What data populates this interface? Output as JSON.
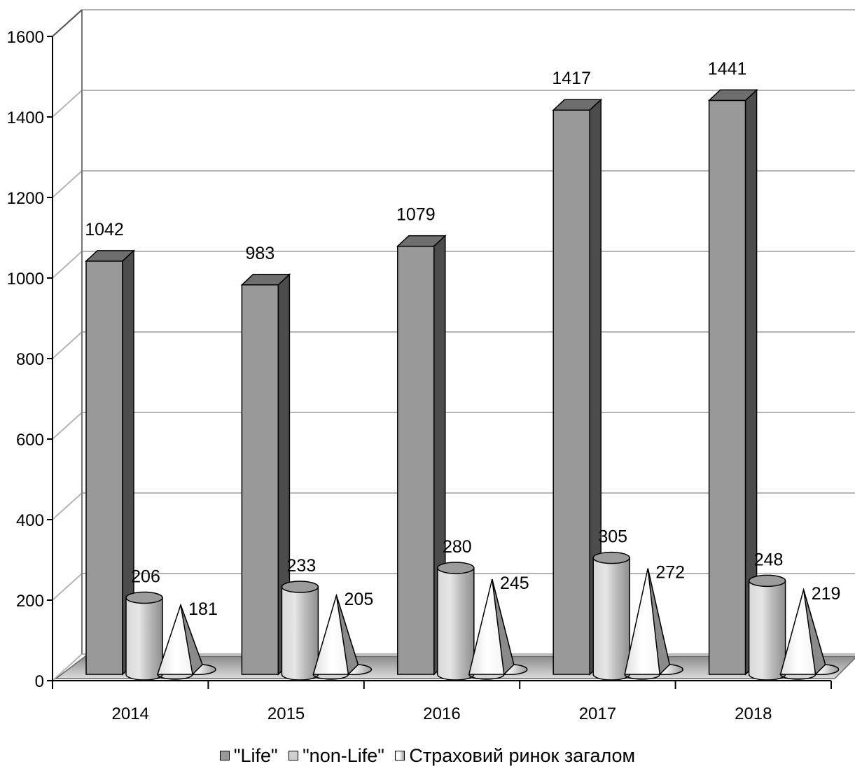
{
  "chart_data": {
    "type": "bar",
    "title": "",
    "xlabel": "",
    "ylabel": "",
    "categories": [
      "2014",
      "2015",
      "2016",
      "2017",
      "2018"
    ],
    "ylim": [
      0,
      1600
    ],
    "yticks": [
      "0",
      "200",
      "400",
      "600",
      "800",
      "1000",
      "1200",
      "1400",
      "1600"
    ],
    "grid": true,
    "legend_position": "bottom",
    "three_d": true,
    "series": [
      {
        "name": "\"Life\"",
        "shape": "box",
        "color": "#999999",
        "values": [
          1042,
          983,
          1079,
          1417,
          1441
        ]
      },
      {
        "name": "\"non-Life\"",
        "shape": "cylinder",
        "color": "#bdbdbd",
        "values": [
          206,
          233,
          280,
          305,
          248
        ]
      },
      {
        "name": "Страховий ринок загалом",
        "shape": "cone",
        "color": "#f5f5f5",
        "values": [
          181,
          205,
          245,
          272,
          219
        ]
      }
    ]
  }
}
